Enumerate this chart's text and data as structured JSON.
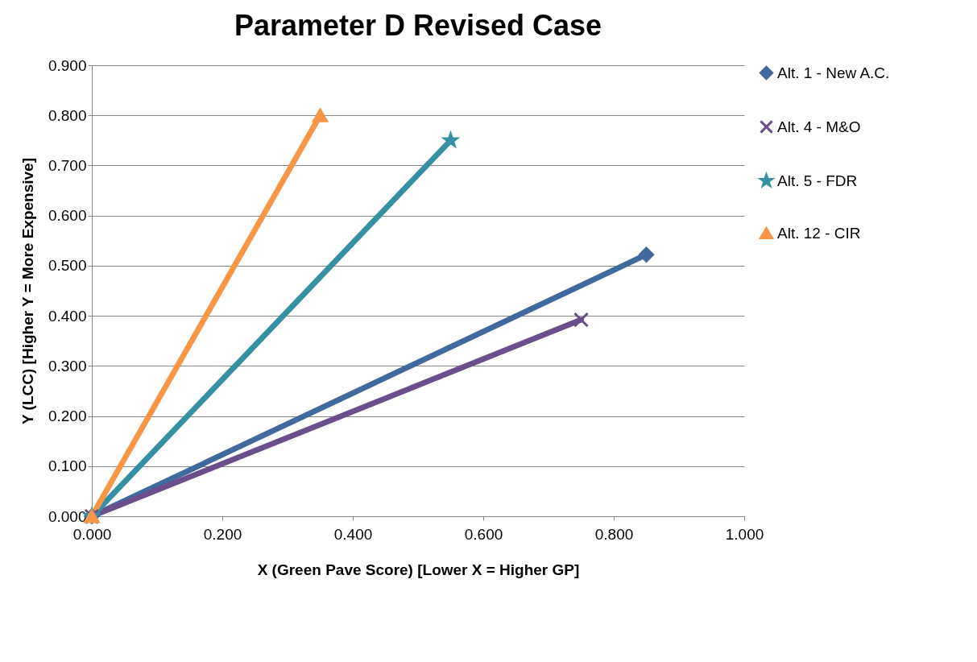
{
  "chart_data": {
    "type": "line",
    "title": "Parameter D Revised Case",
    "xlabel": "X (Green Pave Score) [Lower X = Higher GP]",
    "ylabel": "Y (LCC) [Higher Y = More Expensive]",
    "series": [
      {
        "name": "Alt. 1 - New A.C.",
        "color": "#40699e",
        "marker": "diamond",
        "x": [
          0,
          0.85
        ],
        "values": [
          0,
          0.522
        ]
      },
      {
        "name": "Alt. 4 - M&O",
        "color": "#6b4e8c",
        "marker": "cross",
        "x": [
          0,
          0.75
        ],
        "values": [
          0,
          0.392
        ]
      },
      {
        "name": "Alt. 5 - FDR",
        "color": "#3590a3",
        "marker": "star",
        "x": [
          0,
          0.55
        ],
        "values": [
          0,
          0.75
        ]
      },
      {
        "name": "Alt. 12 - CIR",
        "color": "#f79646",
        "marker": "triangle",
        "x": [
          0,
          0.35
        ],
        "values": [
          0,
          0.8
        ]
      }
    ],
    "xlim": [
      0,
      1
    ],
    "xticks": [
      {
        "value": 0,
        "label": "0.000"
      },
      {
        "value": 0.2,
        "label": "0.200"
      },
      {
        "value": 0.4,
        "label": "0.400"
      },
      {
        "value": 0.6,
        "label": "0.600"
      },
      {
        "value": 0.8,
        "label": "0.800"
      },
      {
        "value": 1,
        "label": "1.000"
      }
    ],
    "ylim": [
      0,
      0.9
    ],
    "yticks": [
      {
        "value": 0,
        "label": "0.000"
      },
      {
        "value": 0.1,
        "label": "0.100"
      },
      {
        "value": 0.2,
        "label": "0.200"
      },
      {
        "value": 0.3,
        "label": "0.300"
      },
      {
        "value": 0.4,
        "label": "0.400"
      },
      {
        "value": 0.5,
        "label": "0.500"
      },
      {
        "value": 0.6,
        "label": "0.600"
      },
      {
        "value": 0.7,
        "label": "0.700"
      },
      {
        "value": 0.8,
        "label": "0.800"
      },
      {
        "value": 0.9,
        "label": "0.900"
      }
    ],
    "grid": "y",
    "legend": "right",
    "line_style": "solid"
  }
}
